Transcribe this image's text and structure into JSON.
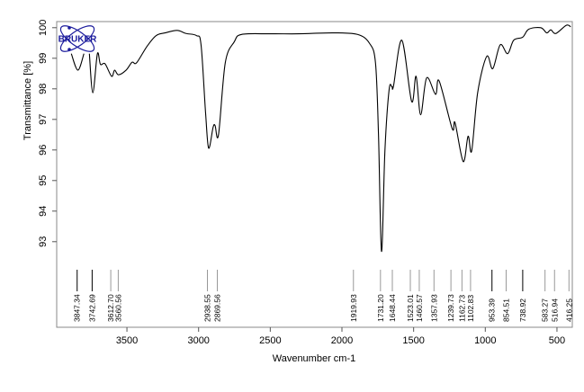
{
  "chart_data": {
    "type": "line",
    "xlabel": "Wavenumber cm-1",
    "ylabel": "Transmittance [%]",
    "xlim": [
      3990,
      393
    ],
    "ylim": [
      90.2,
      100.2
    ],
    "x_reversed": true,
    "grid": false,
    "xticks": [
      3500,
      3000,
      2500,
      2000,
      1500,
      1000,
      500
    ],
    "yticks": [
      100,
      99,
      98,
      97,
      96,
      95,
      94,
      93
    ],
    "line_color": "#000000",
    "logo": {
      "text": "BRUKER",
      "color": "#1a1a9c"
    },
    "series": [
      {
        "x": [
          3888,
          3842,
          3800
        ],
        "y": [
          99.15,
          98.61,
          99.15
        ]
      },
      {
        "x": [
          3762,
          3738,
          3706,
          3685,
          3653,
          3607,
          3586,
          3559,
          3506,
          3464,
          3433,
          3360,
          3297,
          3234,
          3150,
          3087,
          3014,
          2983,
          2951,
          2930,
          2899,
          2885,
          2861,
          2814,
          2751,
          2700,
          2500,
          2300,
          2060,
          1892,
          1808,
          1766,
          1745,
          1724,
          1700,
          1671,
          1651,
          1640,
          1582,
          1514,
          1483,
          1451,
          1409,
          1347,
          1322,
          1231,
          1211,
          1154,
          1120,
          1095,
          1053,
          990,
          948,
          896,
          844,
          802,
          739,
          697,
          613,
          571,
          543,
          508,
          435,
          404
        ],
        "y": [
          99.15,
          97.87,
          99.15,
          98.8,
          98.82,
          98.41,
          98.61,
          98.46,
          98.61,
          98.87,
          98.85,
          99.39,
          99.74,
          99.83,
          99.91,
          99.81,
          99.74,
          99.44,
          97.19,
          96.06,
          96.74,
          96.8,
          96.5,
          98.85,
          99.54,
          99.78,
          99.8,
          99.8,
          99.83,
          99.78,
          99.49,
          98.85,
          96.5,
          92.68,
          96.0,
          97.97,
          98.07,
          98.1,
          99.59,
          97.59,
          98.41,
          97.15,
          98.36,
          97.82,
          98.26,
          96.7,
          96.89,
          95.62,
          96.45,
          95.97,
          97.88,
          99.06,
          98.66,
          99.44,
          99.15,
          99.59,
          99.69,
          99.95,
          100.0,
          99.83,
          99.93,
          99.81,
          100.08,
          100.03
        ]
      }
    ],
    "peak_labels": [
      {
        "x": 3847.34,
        "label": "3847.34",
        "dark": true
      },
      {
        "x": 3742.69,
        "label": "3742.69",
        "dark": true
      },
      {
        "x": 3612.7,
        "label": "3612.70",
        "dark": false
      },
      {
        "x": 3560.56,
        "label": "3560.56",
        "dark": false
      },
      {
        "x": 2938.55,
        "label": "2938.55",
        "dark": false
      },
      {
        "x": 2869.56,
        "label": "2869.56",
        "dark": false
      },
      {
        "x": 1919.93,
        "label": "1919.93",
        "dark": false
      },
      {
        "x": 1731.2,
        "label": "1731.20",
        "dark": false
      },
      {
        "x": 1648.44,
        "label": "1648.44",
        "dark": false
      },
      {
        "x": 1523.01,
        "label": "1523.01",
        "dark": false
      },
      {
        "x": 1460.57,
        "label": "1460.57",
        "dark": false
      },
      {
        "x": 1357.93,
        "label": "1357.93",
        "dark": false
      },
      {
        "x": 1239.73,
        "label": "1239.73",
        "dark": false
      },
      {
        "x": 1162.73,
        "label": "1162.73",
        "dark": false
      },
      {
        "x": 1102.83,
        "label": "1102.83",
        "dark": false
      },
      {
        "x": 953.39,
        "label": "953.39",
        "dark": true
      },
      {
        "x": 854.51,
        "label": "854.51",
        "dark": false
      },
      {
        "x": 738.92,
        "label": "738.92",
        "dark": true
      },
      {
        "x": 583.27,
        "label": "583.27",
        "dark": false
      },
      {
        "x": 516.94,
        "label": "516.94",
        "dark": false
      },
      {
        "x": 416.25,
        "label": "416.25",
        "dark": false
      }
    ]
  }
}
